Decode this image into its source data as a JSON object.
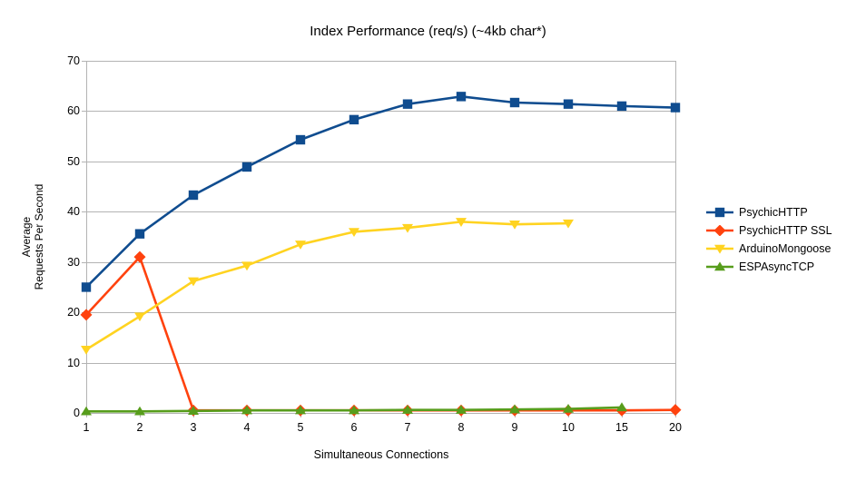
{
  "title": "Index Performance (req/s) (~4kb char*)",
  "chart_data": {
    "type": "line",
    "title": "Index Performance (req/s) (~4kb char*)",
    "xlabel": "Simultaneous Connections",
    "ylabel": "Average Requests Per Second",
    "ylabel_lines": [
      "Average",
      "Requests Per Second"
    ],
    "categories": [
      "1",
      "2",
      "3",
      "4",
      "5",
      "6",
      "7",
      "8",
      "9",
      "10",
      "15",
      "20"
    ],
    "ylim": [
      0,
      70
    ],
    "yticks": [
      0,
      10,
      20,
      30,
      40,
      50,
      60,
      70
    ],
    "grid": "horizontal",
    "grid_color": "#b3b3b3",
    "legend_position": "right",
    "series": [
      {
        "name": "PsychicHTTP",
        "color": "#0f4c8f",
        "marker": "square",
        "values": [
          25.0,
          35.6,
          43.3,
          48.9,
          54.3,
          58.3,
          61.4,
          62.9,
          61.7,
          61.4,
          61.0,
          60.7
        ]
      },
      {
        "name": "PsychicHTTP SSL",
        "color": "#ff420e",
        "marker": "diamond",
        "values": [
          19.5,
          31.0,
          0.5,
          0.5,
          0.5,
          0.5,
          0.5,
          0.5,
          0.5,
          0.5,
          0.5,
          0.6
        ]
      },
      {
        "name": "ArduinoMongoose",
        "color": "#ffd320",
        "marker": "triangle-down",
        "values": [
          12.6,
          19.2,
          26.2,
          29.3,
          33.5,
          36.0,
          36.8,
          38.0,
          37.5,
          37.7,
          null,
          null
        ]
      },
      {
        "name": "ESPAsyncTCP",
        "color": "#579d1c",
        "marker": "triangle-up",
        "values": [
          0.3,
          0.3,
          0.4,
          0.5,
          0.5,
          0.5,
          0.6,
          0.6,
          0.7,
          0.8,
          1.1,
          null
        ]
      }
    ]
  }
}
